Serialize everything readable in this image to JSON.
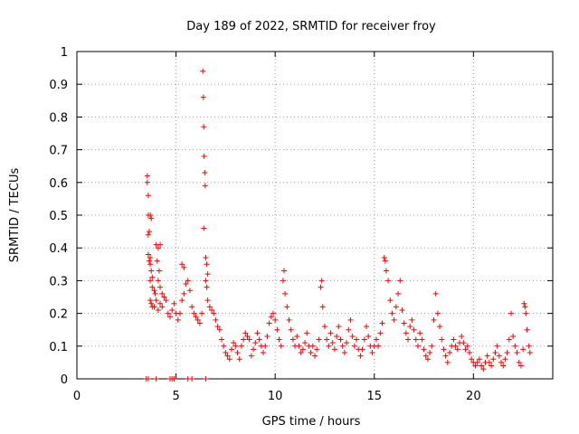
{
  "chart_data": {
    "type": "scatter",
    "title": "Day 189 of 2022, SRMTID for receiver froy",
    "xlabel": "GPS time / hours",
    "ylabel": "SRMTID / TECUs",
    "xlim": [
      0,
      24
    ],
    "ylim": [
      0,
      1
    ],
    "xticks": [
      0,
      5,
      10,
      15,
      20
    ],
    "xtick_labels": [
      "0",
      "5",
      "10",
      "15",
      "20"
    ],
    "yticks": [
      0,
      0.1,
      0.2,
      0.3,
      0.4,
      0.5,
      0.6,
      0.7,
      0.8,
      0.9,
      1
    ],
    "ytick_labels": [
      "0",
      "0.1",
      "0.2",
      "0.3",
      "0.4",
      "0.5",
      "0.6",
      "0.7",
      "0.8",
      "0.9",
      "1"
    ],
    "grid": true,
    "marker": "+",
    "series": [
      {
        "name": "SRMTID",
        "color": "#ff0000",
        "points": [
          [
            3.5,
            0.0
          ],
          [
            3.6,
            0.0
          ],
          [
            4.0,
            0.0
          ],
          [
            4.7,
            0.0
          ],
          [
            4.8,
            0.0
          ],
          [
            4.9,
            0.0
          ],
          [
            5.6,
            0.0
          ],
          [
            5.8,
            0.0
          ],
          [
            6.5,
            0.0
          ],
          [
            3.55,
            0.62
          ],
          [
            3.55,
            0.6
          ],
          [
            3.6,
            0.56
          ],
          [
            3.6,
            0.5
          ],
          [
            3.7,
            0.5
          ],
          [
            3.75,
            0.49
          ],
          [
            3.6,
            0.44
          ],
          [
            3.65,
            0.45
          ],
          [
            3.6,
            0.38
          ],
          [
            3.7,
            0.37
          ],
          [
            3.65,
            0.36
          ],
          [
            3.7,
            0.35
          ],
          [
            3.75,
            0.33
          ],
          [
            3.8,
            0.31
          ],
          [
            3.7,
            0.3
          ],
          [
            3.8,
            0.28
          ],
          [
            3.9,
            0.27
          ],
          [
            3.95,
            0.26
          ],
          [
            4.0,
            0.41
          ],
          [
            4.1,
            0.4
          ],
          [
            4.2,
            0.41
          ],
          [
            4.05,
            0.36
          ],
          [
            4.15,
            0.33
          ],
          [
            4.1,
            0.3
          ],
          [
            4.2,
            0.28
          ],
          [
            4.3,
            0.26
          ],
          [
            3.7,
            0.24
          ],
          [
            3.75,
            0.23
          ],
          [
            3.8,
            0.22
          ],
          [
            3.9,
            0.22
          ],
          [
            4.0,
            0.24
          ],
          [
            4.1,
            0.21
          ],
          [
            4.2,
            0.23
          ],
          [
            4.3,
            0.22
          ],
          [
            4.4,
            0.25
          ],
          [
            4.5,
            0.24
          ],
          [
            4.6,
            0.2
          ],
          [
            4.7,
            0.19
          ],
          [
            4.8,
            0.21
          ],
          [
            4.9,
            0.23
          ],
          [
            5.0,
            0.2
          ],
          [
            5.1,
            0.18
          ],
          [
            5.2,
            0.2
          ],
          [
            5.3,
            0.24
          ],
          [
            5.4,
            0.26
          ],
          [
            5.5,
            0.29
          ],
          [
            5.6,
            0.3
          ],
          [
            5.3,
            0.35
          ],
          [
            5.4,
            0.34
          ],
          [
            5.7,
            0.27
          ],
          [
            5.8,
            0.22
          ],
          [
            5.9,
            0.2
          ],
          [
            6.0,
            0.19
          ],
          [
            6.1,
            0.18
          ],
          [
            6.2,
            0.17
          ],
          [
            6.3,
            0.2
          ],
          [
            6.35,
            0.94
          ],
          [
            6.38,
            0.86
          ],
          [
            6.4,
            0.77
          ],
          [
            6.42,
            0.68
          ],
          [
            6.45,
            0.63
          ],
          [
            6.47,
            0.59
          ],
          [
            6.4,
            0.46
          ],
          [
            6.5,
            0.37
          ],
          [
            6.55,
            0.35
          ],
          [
            6.6,
            0.32
          ],
          [
            6.5,
            0.3
          ],
          [
            6.55,
            0.28
          ],
          [
            6.6,
            0.24
          ],
          [
            6.7,
            0.22
          ],
          [
            6.8,
            0.21
          ],
          [
            6.9,
            0.2
          ],
          [
            7.0,
            0.18
          ],
          [
            7.1,
            0.16
          ],
          [
            7.2,
            0.15
          ],
          [
            7.3,
            0.12
          ],
          [
            7.4,
            0.1
          ],
          [
            7.5,
            0.08
          ],
          [
            7.6,
            0.07
          ],
          [
            7.7,
            0.06
          ],
          [
            7.8,
            0.09
          ],
          [
            7.9,
            0.11
          ],
          [
            8.0,
            0.1
          ],
          [
            8.1,
            0.08
          ],
          [
            8.2,
            0.06
          ],
          [
            8.3,
            0.1
          ],
          [
            8.4,
            0.12
          ],
          [
            8.5,
            0.14
          ],
          [
            8.6,
            0.13
          ],
          [
            8.7,
            0.12
          ],
          [
            8.8,
            0.07
          ],
          [
            8.9,
            0.09
          ],
          [
            9.0,
            0.11
          ],
          [
            9.1,
            0.14
          ],
          [
            9.2,
            0.12
          ],
          [
            9.3,
            0.1
          ],
          [
            9.4,
            0.08
          ],
          [
            9.5,
            0.1
          ],
          [
            9.6,
            0.13
          ],
          [
            9.7,
            0.17
          ],
          [
            9.8,
            0.19
          ],
          [
            9.9,
            0.2
          ],
          [
            10.0,
            0.18
          ],
          [
            10.1,
            0.15
          ],
          [
            10.2,
            0.12
          ],
          [
            10.3,
            0.1
          ],
          [
            10.4,
            0.3
          ],
          [
            10.45,
            0.33
          ],
          [
            10.5,
            0.26
          ],
          [
            10.6,
            0.22
          ],
          [
            10.7,
            0.18
          ],
          [
            10.8,
            0.15
          ],
          [
            10.9,
            0.12
          ],
          [
            11.0,
            0.1
          ],
          [
            11.1,
            0.13
          ],
          [
            11.2,
            0.1
          ],
          [
            11.3,
            0.08
          ],
          [
            11.4,
            0.09
          ],
          [
            11.5,
            0.11
          ],
          [
            11.6,
            0.14
          ],
          [
            11.7,
            0.1
          ],
          [
            11.8,
            0.08
          ],
          [
            11.9,
            0.1
          ],
          [
            12.0,
            0.07
          ],
          [
            12.1,
            0.09
          ],
          [
            12.2,
            0.12
          ],
          [
            12.3,
            0.28
          ],
          [
            12.35,
            0.3
          ],
          [
            12.4,
            0.22
          ],
          [
            12.5,
            0.16
          ],
          [
            12.6,
            0.12
          ],
          [
            12.7,
            0.1
          ],
          [
            12.8,
            0.14
          ],
          [
            12.9,
            0.11
          ],
          [
            13.0,
            0.09
          ],
          [
            13.1,
            0.13
          ],
          [
            13.2,
            0.16
          ],
          [
            13.3,
            0.12
          ],
          [
            13.4,
            0.1
          ],
          [
            13.5,
            0.08
          ],
          [
            13.6,
            0.11
          ],
          [
            13.7,
            0.15
          ],
          [
            13.8,
            0.18
          ],
          [
            13.9,
            0.13
          ],
          [
            14.0,
            0.1
          ],
          [
            14.1,
            0.12
          ],
          [
            14.2,
            0.09
          ],
          [
            14.3,
            0.07
          ],
          [
            14.4,
            0.09
          ],
          [
            14.5,
            0.12
          ],
          [
            14.6,
            0.16
          ],
          [
            14.7,
            0.13
          ],
          [
            14.8,
            0.1
          ],
          [
            14.9,
            0.08
          ],
          [
            15.0,
            0.1
          ],
          [
            15.1,
            0.12
          ],
          [
            15.2,
            0.1
          ],
          [
            15.3,
            0.14
          ],
          [
            15.4,
            0.17
          ],
          [
            15.5,
            0.37
          ],
          [
            15.55,
            0.36
          ],
          [
            15.6,
            0.33
          ],
          [
            15.7,
            0.3
          ],
          [
            15.8,
            0.24
          ],
          [
            15.9,
            0.2
          ],
          [
            16.0,
            0.18
          ],
          [
            16.1,
            0.22
          ],
          [
            16.2,
            0.26
          ],
          [
            16.3,
            0.3
          ],
          [
            16.4,
            0.21
          ],
          [
            16.5,
            0.17
          ],
          [
            16.6,
            0.14
          ],
          [
            16.7,
            0.12
          ],
          [
            16.8,
            0.16
          ],
          [
            16.9,
            0.18
          ],
          [
            17.0,
            0.15
          ],
          [
            17.1,
            0.12
          ],
          [
            17.2,
            0.1
          ],
          [
            17.3,
            0.14
          ],
          [
            17.4,
            0.12
          ],
          [
            17.5,
            0.09
          ],
          [
            17.6,
            0.07
          ],
          [
            17.7,
            0.06
          ],
          [
            17.8,
            0.08
          ],
          [
            17.9,
            0.1
          ],
          [
            18.0,
            0.18
          ],
          [
            18.1,
            0.26
          ],
          [
            18.2,
            0.2
          ],
          [
            18.3,
            0.16
          ],
          [
            18.4,
            0.12
          ],
          [
            18.5,
            0.09
          ],
          [
            18.6,
            0.07
          ],
          [
            18.7,
            0.05
          ],
          [
            18.8,
            0.08
          ],
          [
            18.9,
            0.1
          ],
          [
            19.0,
            0.12
          ],
          [
            19.1,
            0.1
          ],
          [
            19.2,
            0.09
          ],
          [
            19.3,
            0.11
          ],
          [
            19.4,
            0.13
          ],
          [
            19.5,
            0.11
          ],
          [
            19.6,
            0.09
          ],
          [
            19.7,
            0.1
          ],
          [
            19.8,
            0.08
          ],
          [
            19.9,
            0.06
          ],
          [
            20.0,
            0.05
          ],
          [
            20.1,
            0.04
          ],
          [
            20.2,
            0.05
          ],
          [
            20.3,
            0.06
          ],
          [
            20.4,
            0.04
          ],
          [
            20.5,
            0.03
          ],
          [
            20.6,
            0.05
          ],
          [
            20.7,
            0.07
          ],
          [
            20.8,
            0.05
          ],
          [
            20.9,
            0.04
          ],
          [
            21.0,
            0.06
          ],
          [
            21.1,
            0.08
          ],
          [
            21.2,
            0.1
          ],
          [
            21.3,
            0.07
          ],
          [
            21.4,
            0.05
          ],
          [
            21.5,
            0.04
          ],
          [
            21.6,
            0.06
          ],
          [
            21.7,
            0.08
          ],
          [
            21.8,
            0.12
          ],
          [
            21.9,
            0.2
          ],
          [
            22.0,
            0.13
          ],
          [
            22.1,
            0.1
          ],
          [
            22.2,
            0.08
          ],
          [
            22.3,
            0.05
          ],
          [
            22.4,
            0.04
          ],
          [
            22.5,
            0.09
          ],
          [
            22.55,
            0.23
          ],
          [
            22.6,
            0.22
          ],
          [
            22.65,
            0.2
          ],
          [
            22.7,
            0.15
          ],
          [
            22.8,
            0.1
          ],
          [
            22.85,
            0.08
          ]
        ]
      }
    ]
  }
}
